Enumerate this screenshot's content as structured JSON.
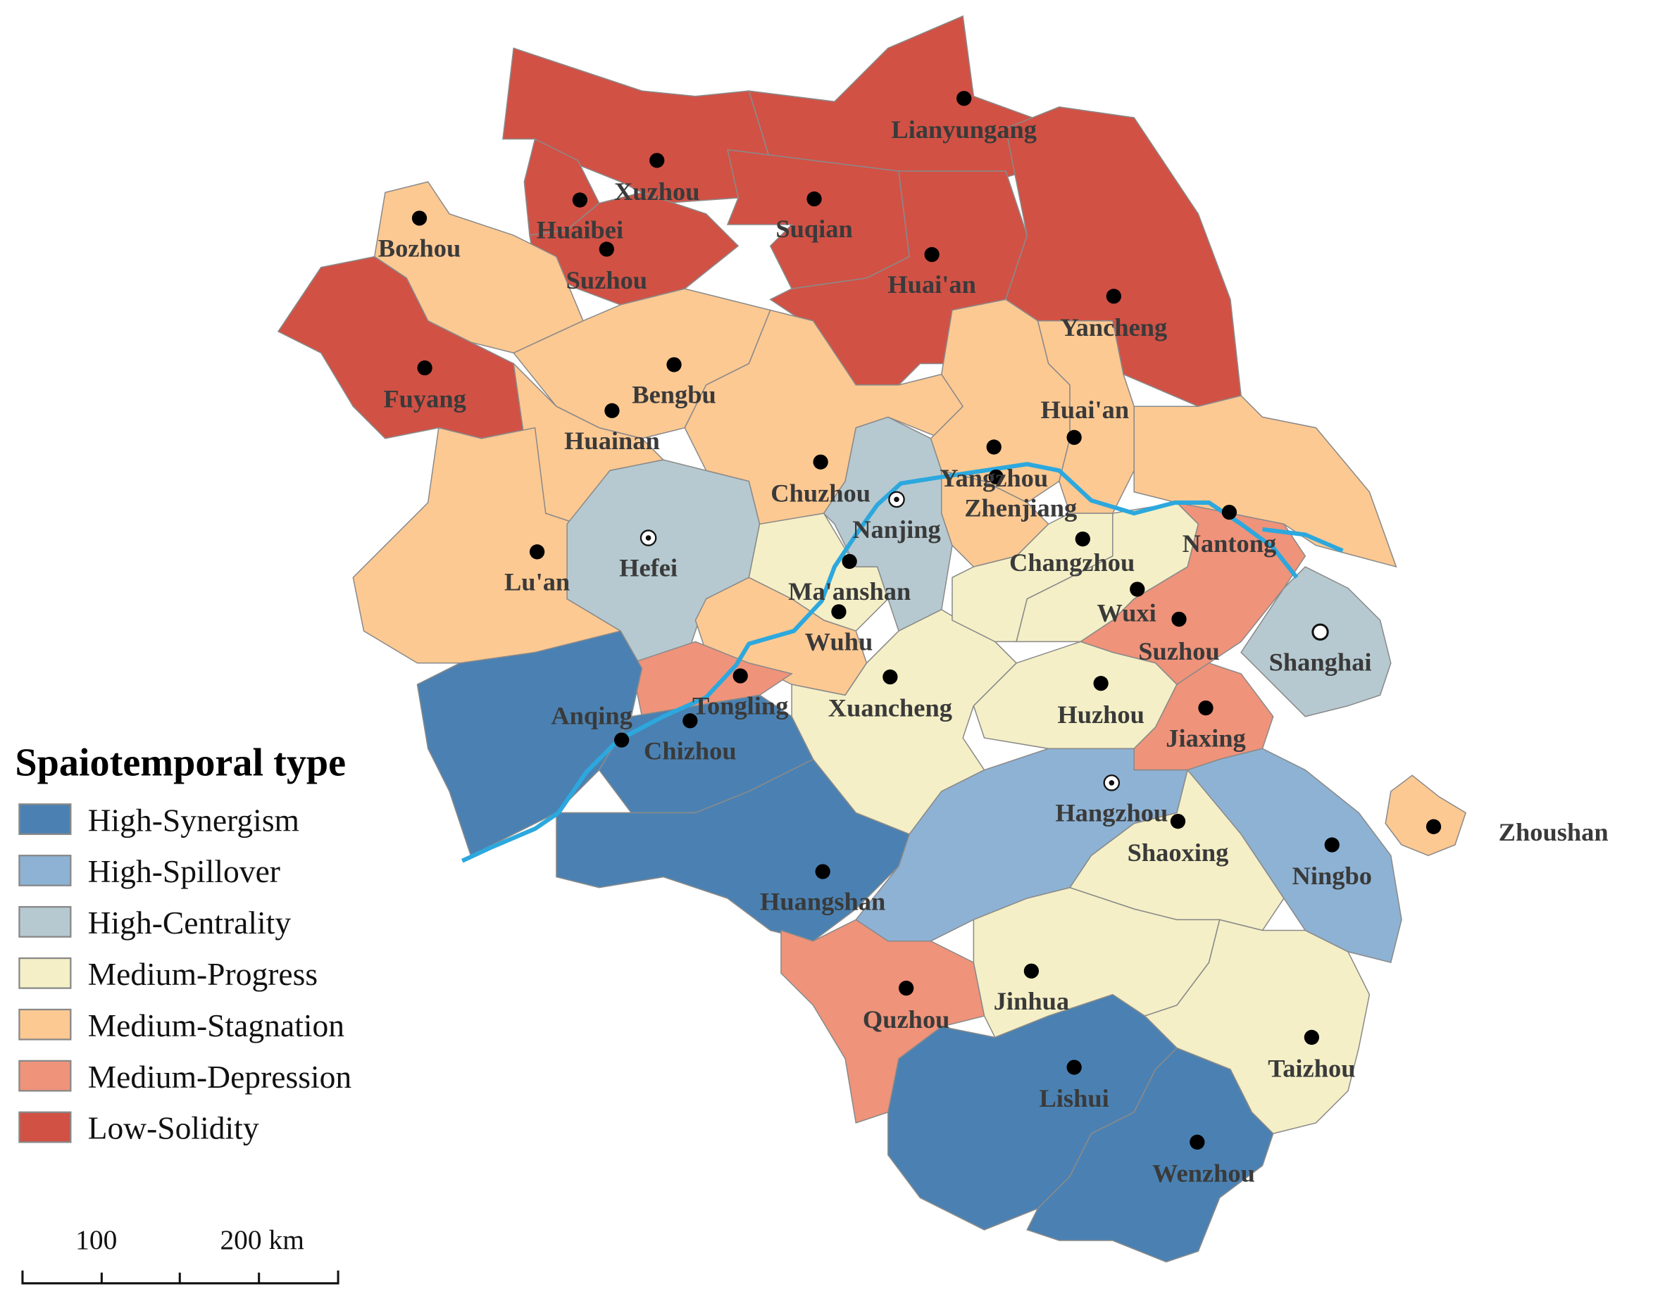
{
  "legend": {
    "title": "Spaiotemporal type",
    "items": [
      {
        "key": "syn",
        "label": "High-Synergism",
        "color": "#4a81b2"
      },
      {
        "key": "spill",
        "label": "High-Spillover",
        "color": "#8db2d4"
      },
      {
        "key": "cent",
        "label": "High-Centrality",
        "color": "#b6c9d0"
      },
      {
        "key": "prog",
        "label": "Medium-Progress",
        "color": "#f4efc6"
      },
      {
        "key": "stag",
        "label": "Medium-Stagnation",
        "color": "#fdc992"
      },
      {
        "key": "depr",
        "label": "Medium-Depression",
        "color": "#ef937a"
      },
      {
        "key": "low",
        "label": "Low-Solidity",
        "color": "#d15145"
      }
    ]
  },
  "river_color": "#2ca8de",
  "scale_bar": {
    "labels": [
      "100",
      "200 km"
    ]
  },
  "cities": [
    {
      "name": "Xuzhou",
      "type": "low"
    },
    {
      "name": "Lianyungang",
      "type": "low"
    },
    {
      "name": "Suqian",
      "type": "low"
    },
    {
      "name": "Huaibei",
      "type": "low"
    },
    {
      "name": "Suzhou",
      "type": "low"
    },
    {
      "name": "Huai'an",
      "type": "low"
    },
    {
      "name": "Yancheng",
      "type": "low"
    },
    {
      "name": "Bozhou",
      "type": "stag"
    },
    {
      "name": "Fuyang",
      "type": "low"
    },
    {
      "name": "Bengbu",
      "type": "stag"
    },
    {
      "name": "Huainan",
      "type": "stag"
    },
    {
      "name": "Lu'an",
      "type": "stag"
    },
    {
      "name": "Hefei",
      "type": "cent",
      "marker": "capital"
    },
    {
      "name": "Chuzhou",
      "type": "stag"
    },
    {
      "name": "Nanjing",
      "type": "cent",
      "marker": "capital"
    },
    {
      "name": "Ma'anshan",
      "type": "prog"
    },
    {
      "name": "Wuhu",
      "type": "stag"
    },
    {
      "name": "Tongling",
      "type": "depr"
    },
    {
      "name": "Anqing",
      "type": "syn"
    },
    {
      "name": "Chizhou",
      "type": "syn"
    },
    {
      "name": "Huangshan",
      "type": "syn"
    },
    {
      "name": "Xuancheng",
      "type": "prog"
    },
    {
      "name": "Yangzhou",
      "type": "stag"
    },
    {
      "name": "Zhenjiang",
      "type": "stag"
    },
    {
      "name": "Huai'an",
      "type": "stag"
    },
    {
      "name": "Nantong",
      "type": "stag"
    },
    {
      "name": "Changzhou",
      "type": "prog"
    },
    {
      "name": "Wuxi",
      "type": "prog"
    },
    {
      "name": "Suzhou",
      "type": "depr"
    },
    {
      "name": "Shanghai",
      "type": "cent",
      "marker": "municipality"
    },
    {
      "name": "Huzhou",
      "type": "prog"
    },
    {
      "name": "Jiaxing",
      "type": "depr"
    },
    {
      "name": "Hangzhou",
      "type": "spill",
      "marker": "capital"
    },
    {
      "name": "Shaoxing",
      "type": "prog"
    },
    {
      "name": "Ningbo",
      "type": "spill"
    },
    {
      "name": "Quzhou",
      "type": "depr"
    },
    {
      "name": "Jinhua",
      "type": "prog"
    },
    {
      "name": "Taizhou",
      "type": "prog"
    },
    {
      "name": "Lishui",
      "type": "syn"
    },
    {
      "name": "Wenzhou",
      "type": "syn"
    },
    {
      "name": "Zhoushan",
      "type": "stag"
    }
  ]
}
